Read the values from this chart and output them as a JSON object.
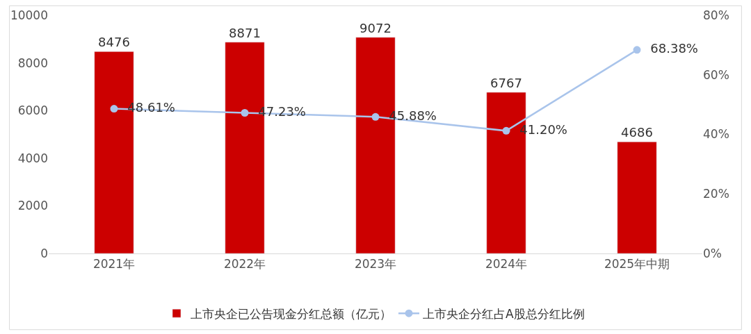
{
  "chart_data": {
    "type": "bar",
    "categories": [
      "2021年",
      "2022年",
      "2023年",
      "2024年",
      "2025年中期"
    ],
    "series": [
      {
        "name": "上市央企已公告现金分红总额（亿元）",
        "color": "#cc0000",
        "values": [
          8476,
          8871,
          9072,
          6767,
          4686
        ],
        "value_labels": [
          "8476",
          "8871",
          "9072",
          "6767",
          "4686"
        ]
      },
      {
        "name": "上市央企分红占A股总分红比例",
        "type": "line",
        "axis": "y2",
        "color": "#a9c4eb",
        "values": [
          48.61,
          47.23,
          45.88,
          41.2,
          68.38
        ],
        "value_labels": [
          "48.61%",
          "47.23%",
          "45.88%",
          "41.20%",
          "68.38%"
        ]
      }
    ],
    "ylim": [
      0,
      10000
    ],
    "yticks": [
      0,
      2000,
      4000,
      6000,
      8000,
      10000
    ],
    "y2lim": [
      0,
      80
    ],
    "y2ticks": [
      {
        "value": 0,
        "label": "0%"
      },
      {
        "value": 20,
        "label": "20%"
      },
      {
        "value": 40,
        "label": "40%"
      },
      {
        "value": 60,
        "label": "60%"
      },
      {
        "value": 80,
        "label": "80%"
      }
    ],
    "legend": "bottom",
    "marker": "circle",
    "line_style": "solid"
  }
}
